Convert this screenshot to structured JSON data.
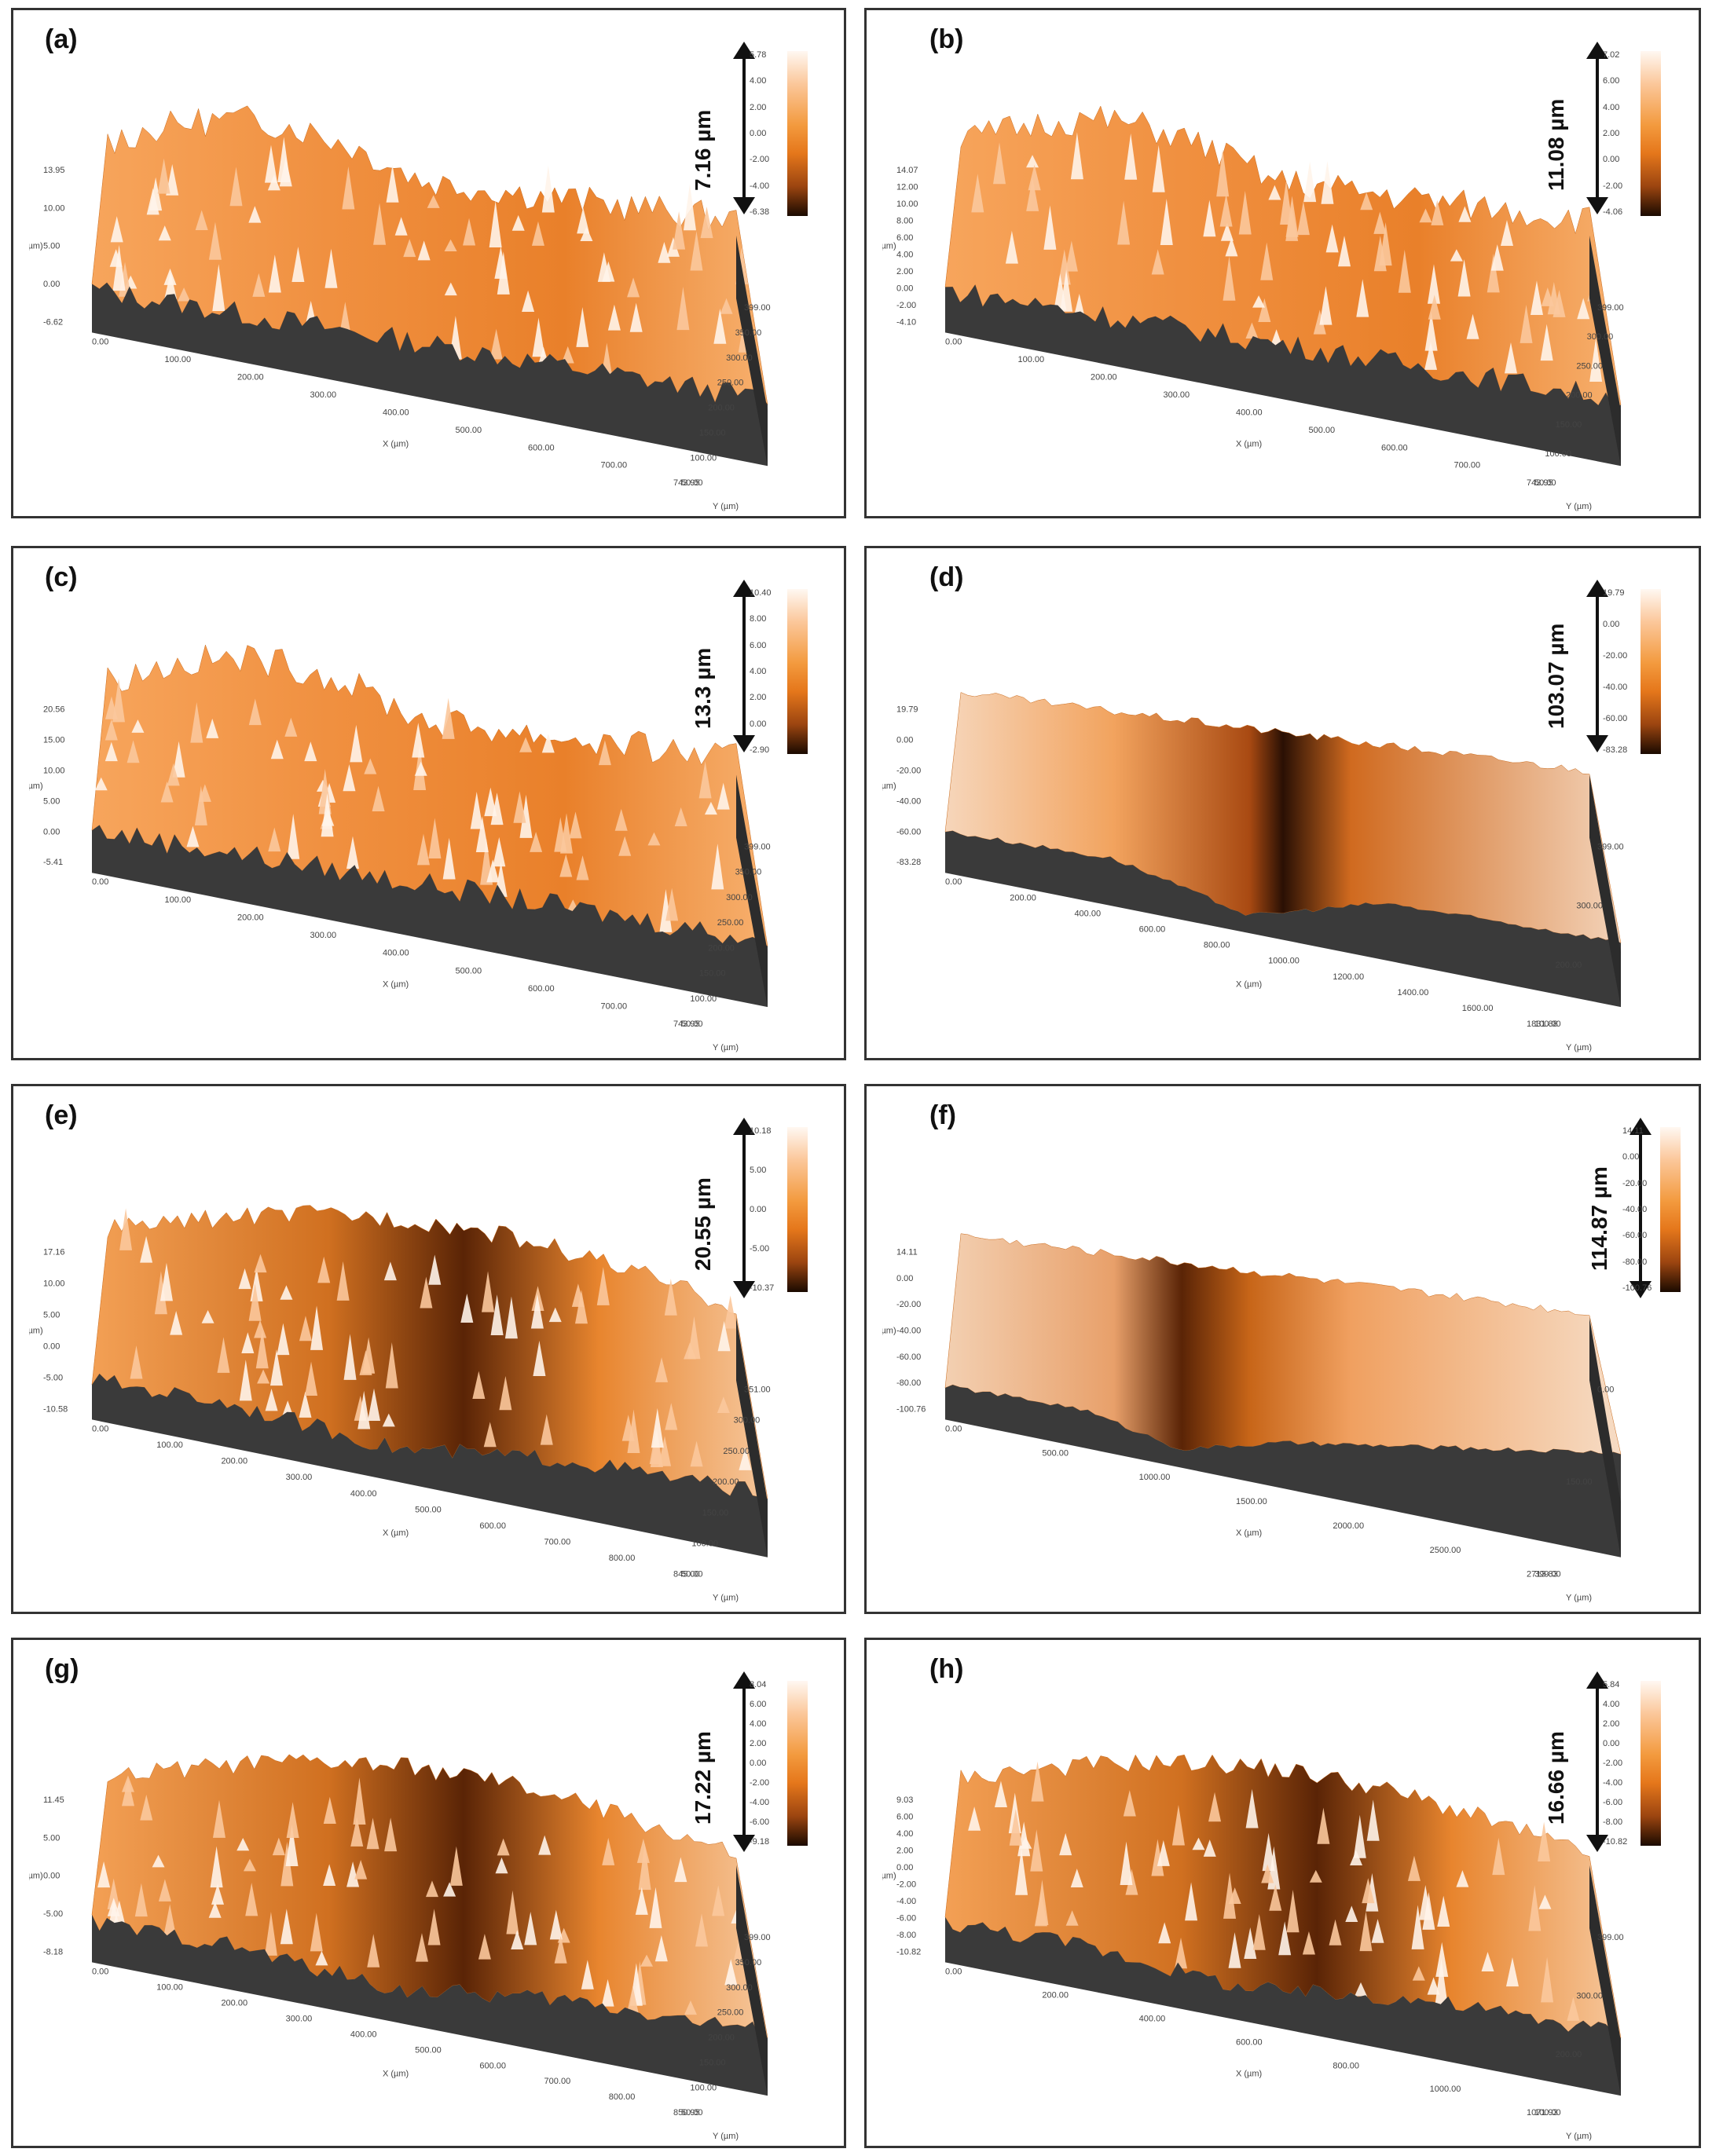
{
  "panels": [
    {
      "label": "(a)",
      "scale_bar": "7.16 µm",
      "colorbar_ticks": [
        "5.78",
        "4.00",
        "2.00",
        "0.00",
        "-2.00",
        "-4.00",
        "-6.38"
      ],
      "z_axis_label": "Z (µm)",
      "z_ticks": [
        "13.95",
        "10.00",
        "5.00",
        "0.00",
        "-6.62"
      ],
      "x_axis_label": "X (µm)",
      "x_ticks": [
        "0.00",
        "100.00",
        "200.00",
        "300.00",
        "400.00",
        "500.00",
        "600.00",
        "700.00",
        "743.95"
      ],
      "y_axis_label": "Y (µm)",
      "y_ticks": [
        "50.00",
        "100.00",
        "150.00",
        "200.00",
        "250.00",
        "300.00",
        "350.00",
        "399.00"
      ]
    },
    {
      "label": "(b)",
      "scale_bar": "11.08 µm",
      "colorbar_ticks": [
        "7.02",
        "6.00",
        "4.00",
        "2.00",
        "0.00",
        "-2.00",
        "-4.06"
      ],
      "z_axis_label": "Z (µm)",
      "z_ticks": [
        "14.07",
        "12.00",
        "10.00",
        "8.00",
        "6.00",
        "4.00",
        "2.00",
        "0.00",
        "-2.00",
        "-4.10"
      ],
      "x_axis_label": "X (µm)",
      "x_ticks": [
        "0.00",
        "100.00",
        "200.00",
        "300.00",
        "400.00",
        "500.00",
        "600.00",
        "700.00",
        "743.95"
      ],
      "y_axis_label": "Y (µm)",
      "y_ticks": [
        "50.00",
        "100.00",
        "150.00",
        "200.00",
        "250.00",
        "300.00",
        "399.00"
      ]
    },
    {
      "label": "(c)",
      "scale_bar": "13.3 µm",
      "colorbar_ticks": [
        "10.40",
        "8.00",
        "6.00",
        "4.00",
        "2.00",
        "0.00",
        "-2.90"
      ],
      "z_axis_label": "Z (µm)",
      "z_ticks": [
        "20.56",
        "15.00",
        "10.00",
        "5.00",
        "0.00",
        "-5.41"
      ],
      "x_axis_label": "X (µm)",
      "x_ticks": [
        "0.00",
        "100.00",
        "200.00",
        "300.00",
        "400.00",
        "500.00",
        "600.00",
        "700.00",
        "743.95"
      ],
      "y_axis_label": "Y (µm)",
      "y_ticks": [
        "50.00",
        "100.00",
        "150.00",
        "200.00",
        "250.00",
        "300.00",
        "350.00",
        "399.00"
      ]
    },
    {
      "label": "(d)",
      "scale_bar": "103.07 µm",
      "colorbar_ticks": [
        "19.79",
        "0.00",
        "-20.00",
        "-40.00",
        "-60.00",
        "-83.28"
      ],
      "z_axis_label": "Z (µm)",
      "z_ticks": [
        "19.79",
        "0.00",
        "-20.00",
        "-40.00",
        "-60.00",
        "-83.28"
      ],
      "x_axis_label": "X (µm)",
      "x_ticks": [
        "0.00",
        "200.00",
        "400.00",
        "600.00",
        "800.00",
        "1000.00",
        "1200.00",
        "1400.00",
        "1600.00",
        "1831.88"
      ],
      "y_axis_label": "Y (µm)",
      "y_ticks": [
        "100.00",
        "200.00",
        "300.00",
        "399.00"
      ]
    },
    {
      "label": "(e)",
      "scale_bar": "20.55 µm",
      "colorbar_ticks": [
        "10.18",
        "5.00",
        "0.00",
        "-5.00",
        "-10.37"
      ],
      "z_axis_label": "Z (µm)",
      "z_ticks": [
        "17.16",
        "10.00",
        "5.00",
        "0.00",
        "-5.00",
        "-10.58"
      ],
      "x_axis_label": "X (µm)",
      "x_ticks": [
        "0.00",
        "100.00",
        "200.00",
        "300.00",
        "400.00",
        "500.00",
        "600.00",
        "700.00",
        "800.00",
        "845.00"
      ],
      "y_axis_label": "Y (µm)",
      "y_ticks": [
        "50.00",
        "100.00",
        "150.00",
        "200.00",
        "250.00",
        "300.00",
        "351.00"
      ]
    },
    {
      "label": "(f)",
      "scale_bar": "114.87 µm",
      "colorbar_ticks": [
        "14.11",
        "0.00",
        "-20.00",
        "-40.00",
        "-60.00",
        "-80.00",
        "-100.76"
      ],
      "z_axis_label": "Z (µm)",
      "z_ticks": [
        "14.11",
        "0.00",
        "-20.00",
        "-40.00",
        "-60.00",
        "-80.00",
        "-100.76"
      ],
      "x_axis_label": "X (µm)",
      "x_ticks": [
        "0.00",
        "500.00",
        "1000.00",
        "1500.00",
        "2000.00",
        "2500.00",
        "2713.83"
      ],
      "y_axis_label": "Y (µm)",
      "y_ticks": [
        "399.00",
        "150.00",
        "0.00"
      ]
    },
    {
      "label": "(g)",
      "scale_bar": "17.22 µm",
      "colorbar_ticks": [
        "8.04",
        "6.00",
        "4.00",
        "2.00",
        "0.00",
        "-2.00",
        "-4.00",
        "-6.00",
        "-9.18"
      ],
      "z_axis_label": "Z (µm)",
      "z_ticks": [
        "11.45",
        "5.00",
        "0.00",
        "-5.00",
        "-8.18"
      ],
      "x_axis_label": "X (µm)",
      "x_ticks": [
        "0.00",
        "100.00",
        "200.00",
        "300.00",
        "400.00",
        "500.00",
        "600.00",
        "700.00",
        "800.00",
        "850.95"
      ],
      "y_axis_label": "Y (µm)",
      "y_ticks": [
        "50.00",
        "100.00",
        "150.00",
        "200.00",
        "250.00",
        "300.00",
        "350.00",
        "399.00"
      ]
    },
    {
      "label": "(h)",
      "scale_bar": "16.66 µm",
      "colorbar_ticks": [
        "5.84",
        "4.00",
        "2.00",
        "0.00",
        "-2.00",
        "-4.00",
        "-6.00",
        "-8.00",
        "-10.82"
      ],
      "z_axis_label": "Z (µm)",
      "z_ticks": [
        "9.03",
        "6.00",
        "4.00",
        "2.00",
        "0.00",
        "-2.00",
        "-4.00",
        "-6.00",
        "-8.00",
        "-10.82"
      ],
      "x_axis_label": "X (µm)",
      "x_ticks": [
        "0.00",
        "200.00",
        "400.00",
        "600.00",
        "800.00",
        "1000.00",
        "1071.93"
      ],
      "y_axis_label": "Y (µm)",
      "y_ticks": [
        "100.00",
        "200.00",
        "300.00",
        "399.00"
      ]
    }
  ],
  "colors": {
    "surface_light": "#fff4ea",
    "surface_mid": "#f08a2c",
    "surface_dark": "#5a2406",
    "wall": "#3a3a3a",
    "border": "#333333"
  }
}
